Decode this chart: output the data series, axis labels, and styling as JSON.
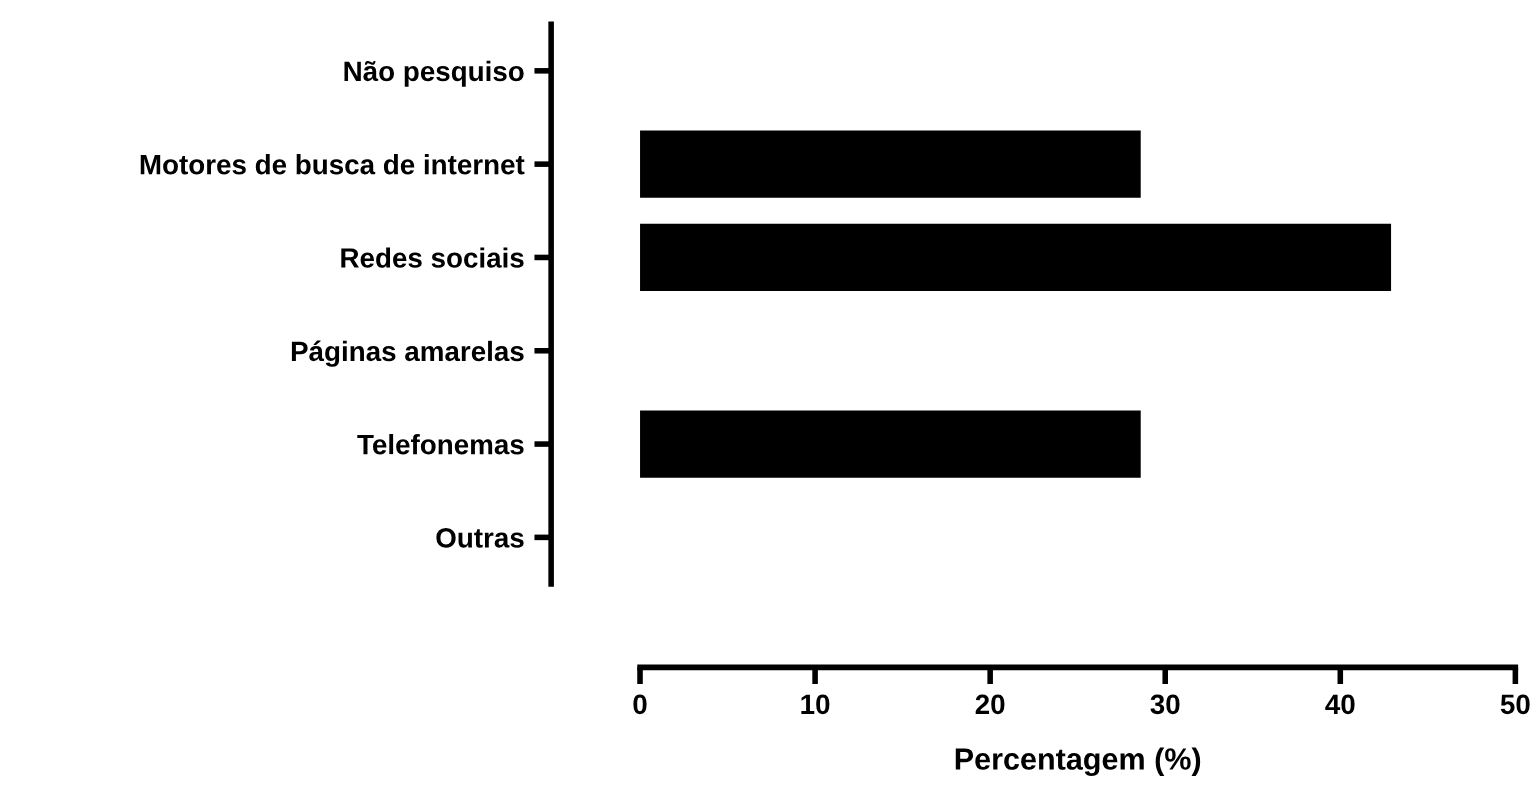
{
  "chart_data": {
    "type": "bar",
    "orientation": "horizontal",
    "xlabel": "Percentagem (%)",
    "categories": [
      "Não pesquiso",
      "Motores de busca de internet",
      "Redes sociais",
      "Páginas amarelas",
      "Telefonemas",
      "Outras"
    ],
    "values": [
      0,
      28.6,
      42.9,
      0,
      28.6,
      0
    ],
    "color": "#000000",
    "xlim": [
      0,
      50
    ],
    "xticks": [
      0,
      10,
      20,
      30,
      40,
      50
    ],
    "grid": false
  }
}
